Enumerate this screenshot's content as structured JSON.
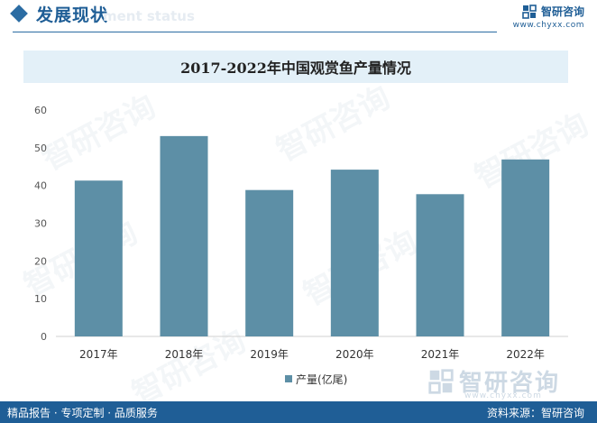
{
  "header": {
    "section_title": "发展现状",
    "section_subtitle": "ment status"
  },
  "brand": {
    "name": "智研咨询",
    "url": "www.chyxx.com"
  },
  "watermark": {
    "text": "智研咨询",
    "bottom_text": "智研咨询",
    "bottom_url": "www.chyxx.com"
  },
  "footer": {
    "slogan": "精品报告 · 专项定制 · 品质服务",
    "source": "资料来源：智研咨询"
  },
  "colors": {
    "bar": "#5d8fa6",
    "accent": "#1f5e96",
    "title_band": "#e3f0f8"
  },
  "chart_data": {
    "type": "bar",
    "title": "2017-2022年中国观赏鱼产量情况",
    "categories": [
      "2017年",
      "2018年",
      "2019年",
      "2020年",
      "2021年",
      "2022年"
    ],
    "series": [
      {
        "name": "产量(亿尾)",
        "values": [
          41.3,
          53.1,
          38.8,
          44.2,
          37.7,
          46.9
        ]
      }
    ],
    "ylim": [
      0,
      60
    ],
    "yticks": [
      "0",
      "10",
      "20",
      "30",
      "40",
      "50",
      "60"
    ],
    "grid": false,
    "legend": "bottom-center"
  }
}
